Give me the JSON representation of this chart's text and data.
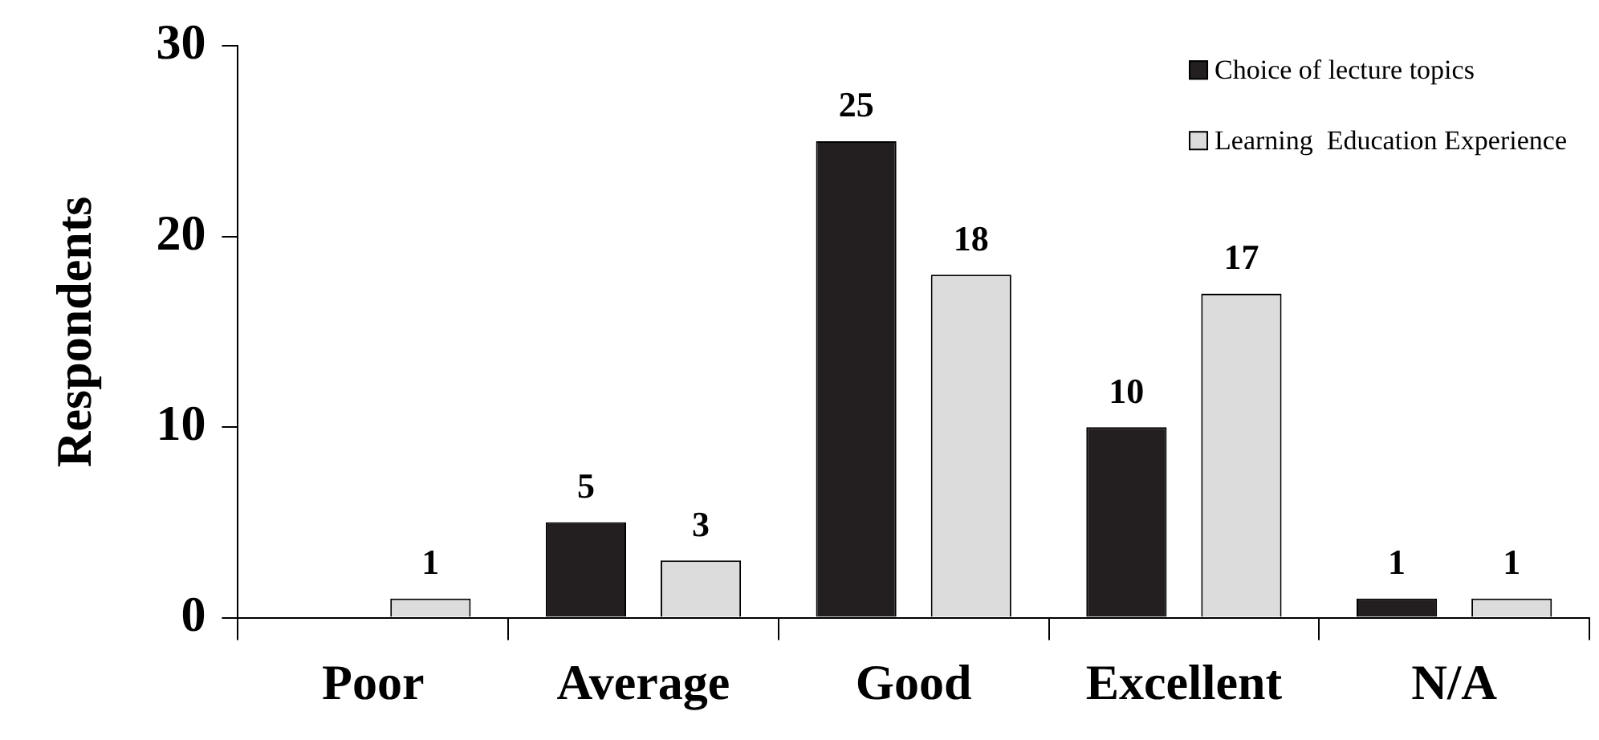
{
  "chart_data": {
    "type": "bar",
    "ylabel": "Respondents",
    "categories": [
      "Poor",
      "Average",
      "Good",
      "Excellent",
      "N/A"
    ],
    "series": [
      {
        "name": "Choice of lecture topics",
        "color": "#231f20",
        "values": [
          0,
          5,
          25,
          10,
          1
        ],
        "value_labels": [
          null,
          "5",
          "25",
          "10",
          "1"
        ]
      },
      {
        "name": "Learning  Education Experience",
        "color": "#dcdcdc",
        "values": [
          1,
          3,
          18,
          17,
          1
        ],
        "value_labels": [
          "1",
          "3",
          "18",
          "17",
          "1"
        ]
      }
    ],
    "ylim": [
      0,
      30
    ],
    "yticks": [
      0,
      10,
      20,
      30
    ],
    "grid": false,
    "legend": "top right"
  }
}
